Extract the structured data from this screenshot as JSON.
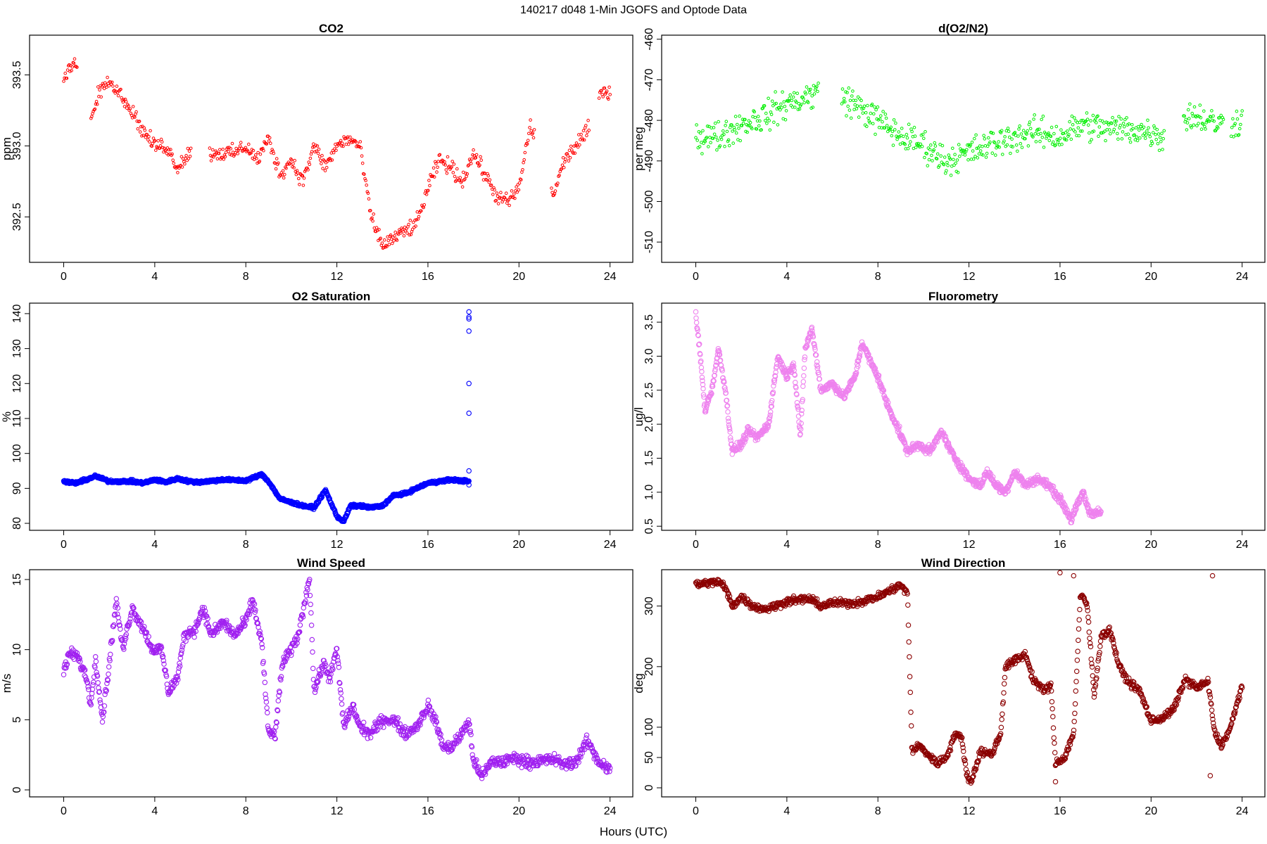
{
  "page": {
    "title": "140217   d048   1-Min  JGOFS and Optode Data",
    "xlabel": "Hours (UTC)"
  },
  "chart_data": [
    {
      "id": "co2",
      "type": "scatter",
      "title": "CO2",
      "ylabel": "ppm",
      "color": "#ff0000",
      "marker": "small-circle",
      "xlim": [
        -1.5,
        25
      ],
      "ylim": [
        392.18,
        393.78
      ],
      "xticks": [
        0,
        4,
        8,
        12,
        16,
        20,
        24
      ],
      "yticks": [
        392.5,
        393.0,
        393.5
      ],
      "ytick_labels": [
        "392.5",
        "393.0",
        "393.5"
      ],
      "trend": [
        [
          0,
          393.45
        ],
        [
          0.3,
          393.55
        ],
        [
          0.5,
          393.6
        ],
        [
          1.2,
          393.2
        ],
        [
          1.6,
          393.4
        ],
        [
          2,
          393.45
        ],
        [
          2.5,
          393.35
        ],
        [
          3,
          393.25
        ],
        [
          3.5,
          393.1
        ],
        [
          4,
          393.0
        ],
        [
          4.5,
          393.0
        ],
        [
          5,
          392.85
        ],
        [
          5.5,
          392.95
        ],
        [
          6.5,
          392.95
        ],
        [
          7.5,
          392.95
        ],
        [
          8,
          393.0
        ],
        [
          8.5,
          392.9
        ],
        [
          9,
          393.05
        ],
        [
          9.5,
          392.8
        ],
        [
          10,
          392.9
        ],
        [
          10.5,
          392.75
        ],
        [
          11,
          393.0
        ],
        [
          11.5,
          392.85
        ],
        [
          12,
          393.0
        ],
        [
          12.5,
          393.05
        ],
        [
          13,
          393.0
        ],
        [
          13.5,
          392.5
        ],
        [
          14,
          392.3
        ],
        [
          14.5,
          392.35
        ],
        [
          15,
          392.4
        ],
        [
          15.5,
          392.45
        ],
        [
          16,
          392.7
        ],
        [
          16.5,
          392.9
        ],
        [
          17,
          392.85
        ],
        [
          17.5,
          392.75
        ],
        [
          18,
          392.95
        ],
        [
          18.5,
          392.8
        ],
        [
          19,
          392.65
        ],
        [
          19.5,
          392.6
        ],
        [
          20,
          392.7
        ],
        [
          20.5,
          393.15
        ],
        [
          21.5,
          392.65
        ],
        [
          22,
          392.9
        ],
        [
          22.5,
          393.0
        ],
        [
          23,
          393.1
        ],
        [
          23.5,
          393.35
        ],
        [
          24,
          393.4
        ]
      ],
      "gaps": [
        [
          0.6,
          1.2
        ],
        [
          5.6,
          6.4
        ],
        [
          20.7,
          21.4
        ],
        [
          23.1,
          23.5
        ]
      ],
      "noise": 0.08
    },
    {
      "id": "o2n2",
      "type": "scatter",
      "title": "d(O2/N2)",
      "ylabel": "per meg",
      "color": "#00ee00",
      "marker": "small-circle",
      "xlim": [
        -1.5,
        25
      ],
      "ylim": [
        -515,
        -459
      ],
      "xticks": [
        0,
        4,
        8,
        12,
        16,
        20,
        24
      ],
      "yticks": [
        -510,
        -500,
        -490,
        -480,
        -470,
        -460
      ],
      "ytick_labels": [
        "-510",
        "-500",
        "-490",
        "-480",
        "-470",
        "-460"
      ],
      "trend": [
        [
          0,
          -484
        ],
        [
          1,
          -484
        ],
        [
          2,
          -481
        ],
        [
          3,
          -479
        ],
        [
          4,
          -476
        ],
        [
          5,
          -474
        ],
        [
          5.4,
          -473
        ],
        [
          6.4,
          -474
        ],
        [
          7,
          -476
        ],
        [
          8,
          -480
        ],
        [
          9,
          -484
        ],
        [
          10,
          -486
        ],
        [
          10.5,
          -488
        ],
        [
          11,
          -490
        ],
        [
          12,
          -488
        ],
        [
          13,
          -486
        ],
        [
          14,
          -484
        ],
        [
          15,
          -483
        ],
        [
          16,
          -484
        ],
        [
          17,
          -481
        ],
        [
          18,
          -482
        ],
        [
          19,
          -482
        ],
        [
          20,
          -483
        ],
        [
          20.5,
          -484
        ],
        [
          21.5,
          -479
        ],
        [
          22,
          -479
        ],
        [
          23,
          -481
        ],
        [
          24,
          -480
        ]
      ],
      "gaps": [
        [
          5.4,
          6.4
        ],
        [
          20.6,
          21.4
        ],
        [
          23.2,
          23.5
        ]
      ],
      "noise": 5.5
    },
    {
      "id": "o2sat",
      "type": "scatter",
      "title": "O2 Saturation",
      "ylabel": "%",
      "color": "#0000ff",
      "marker": "circle",
      "xlim": [
        -1.5,
        25
      ],
      "ylim": [
        78,
        143
      ],
      "xticks": [
        0,
        4,
        8,
        12,
        16,
        20,
        24
      ],
      "yticks": [
        80,
        90,
        100,
        110,
        120,
        130,
        140
      ],
      "ytick_labels": [
        "80",
        "90",
        "100",
        "110",
        "120",
        "130",
        "140"
      ],
      "trend": [
        [
          0,
          92
        ],
        [
          0.5,
          91.5
        ],
        [
          1,
          92.5
        ],
        [
          1.4,
          93.5
        ],
        [
          2,
          92
        ],
        [
          3,
          92
        ],
        [
          3.5,
          91.5
        ],
        [
          4,
          92.5
        ],
        [
          4.5,
          91.8
        ],
        [
          5,
          92.8
        ],
        [
          5.5,
          92
        ],
        [
          6,
          91.8
        ],
        [
          7,
          92.5
        ],
        [
          8,
          92.2
        ],
        [
          8.7,
          94
        ],
        [
          9,
          92
        ],
        [
          9.5,
          87
        ],
        [
          10,
          86
        ],
        [
          10.5,
          85
        ],
        [
          11,
          84.5
        ],
        [
          11.5,
          89.5
        ],
        [
          12,
          82
        ],
        [
          12.3,
          80.5
        ],
        [
          12.6,
          85
        ],
        [
          13,
          85
        ],
        [
          13.5,
          84.5
        ],
        [
          14,
          85
        ],
        [
          14.5,
          88
        ],
        [
          15,
          88.5
        ],
        [
          15.5,
          90
        ],
        [
          16,
          91.5
        ],
        [
          17,
          92.5
        ],
        [
          17.8,
          92
        ]
      ],
      "gaps": [],
      "noise": 0.6,
      "outliers": [
        [
          17.8,
          140.5
        ],
        [
          17.8,
          139
        ],
        [
          17.8,
          138.5
        ],
        [
          17.8,
          135
        ],
        [
          17.8,
          120
        ],
        [
          17.8,
          111.5
        ],
        [
          17.8,
          95
        ],
        [
          17.8,
          91
        ]
      ]
    },
    {
      "id": "fluor",
      "type": "scatter",
      "title": "Fluorometry",
      "ylabel": "ug/l",
      "color": "#ee82ee",
      "marker": "circle",
      "xlim": [
        -1.5,
        25
      ],
      "ylim": [
        0.44,
        3.78
      ],
      "xticks": [
        0,
        4,
        8,
        12,
        16,
        20,
        24
      ],
      "yticks": [
        0.5,
        1.0,
        1.5,
        2.0,
        2.5,
        3.0,
        3.5
      ],
      "ytick_labels": [
        "0.5",
        "1.0",
        "1.5",
        "2.0",
        "2.5",
        "3.0",
        "3.5"
      ],
      "trend": [
        [
          0,
          3.6
        ],
        [
          0.2,
          3.0
        ],
        [
          0.4,
          2.2
        ],
        [
          0.7,
          2.5
        ],
        [
          1,
          3.1
        ],
        [
          1.3,
          2.5
        ],
        [
          1.6,
          1.6
        ],
        [
          2,
          1.7
        ],
        [
          2.3,
          1.9
        ],
        [
          2.7,
          1.8
        ],
        [
          3.2,
          2.0
        ],
        [
          3.6,
          3.0
        ],
        [
          4,
          2.7
        ],
        [
          4.3,
          2.9
        ],
        [
          4.6,
          1.8
        ],
        [
          4.8,
          3.1
        ],
        [
          5.1,
          3.4
        ],
        [
          5.5,
          2.5
        ],
        [
          6,
          2.6
        ],
        [
          6.5,
          2.4
        ],
        [
          7,
          2.7
        ],
        [
          7.3,
          3.2
        ],
        [
          7.7,
          2.9
        ],
        [
          8,
          2.7
        ],
        [
          8.4,
          2.3
        ],
        [
          8.8,
          2.0
        ],
        [
          9.3,
          1.6
        ],
        [
          9.8,
          1.7
        ],
        [
          10.3,
          1.6
        ],
        [
          10.8,
          1.9
        ],
        [
          11.2,
          1.6
        ],
        [
          11.6,
          1.4
        ],
        [
          12,
          1.2
        ],
        [
          12.5,
          1.1
        ],
        [
          12.8,
          1.3
        ],
        [
          13.2,
          1.1
        ],
        [
          13.6,
          1.0
        ],
        [
          14,
          1.3
        ],
        [
          14.5,
          1.1
        ],
        [
          15,
          1.2
        ],
        [
          15.5,
          1.1
        ],
        [
          16,
          0.9
        ],
        [
          16.5,
          0.6
        ],
        [
          17,
          1.0
        ],
        [
          17.3,
          0.7
        ],
        [
          17.8,
          0.7
        ]
      ],
      "gaps": [],
      "noise": 0.09
    },
    {
      "id": "wspd",
      "type": "scatter",
      "title": "Wind Speed",
      "ylabel": "m/s",
      "color": "#a020f0",
      "marker": "circle",
      "xlim": [
        -1.5,
        25
      ],
      "ylim": [
        -0.5,
        15.7
      ],
      "xticks": [
        0,
        4,
        8,
        12,
        16,
        20,
        24
      ],
      "yticks": [
        0,
        5,
        10,
        15
      ],
      "ytick_labels": [
        "0",
        "5",
        "10",
        "15"
      ],
      "trend": [
        [
          0,
          8.5
        ],
        [
          0.3,
          9.8
        ],
        [
          0.6,
          9.5
        ],
        [
          1,
          8
        ],
        [
          1.2,
          6
        ],
        [
          1.4,
          9.5
        ],
        [
          1.7,
          5
        ],
        [
          2,
          9
        ],
        [
          2.3,
          13.5
        ],
        [
          2.6,
          10
        ],
        [
          3,
          13
        ],
        [
          3.5,
          11.5
        ],
        [
          3.9,
          10
        ],
        [
          4.3,
          10
        ],
        [
          4.6,
          7
        ],
        [
          5,
          8
        ],
        [
          5.3,
          11
        ],
        [
          5.8,
          11.5
        ],
        [
          6.1,
          13
        ],
        [
          6.5,
          11
        ],
        [
          7,
          12
        ],
        [
          7.5,
          11
        ],
        [
          8,
          12
        ],
        [
          8.3,
          13.5
        ],
        [
          8.7,
          10.5
        ],
        [
          9,
          4
        ],
        [
          9.3,
          4
        ],
        [
          9.6,
          9
        ],
        [
          10,
          10
        ],
        [
          10.3,
          11
        ],
        [
          10.6,
          13.5
        ],
        [
          10.8,
          15.2
        ],
        [
          11,
          7
        ],
        [
          11.4,
          9
        ],
        [
          11.7,
          8
        ],
        [
          12,
          10
        ],
        [
          12.3,
          4.5
        ],
        [
          12.7,
          6
        ],
        [
          13,
          4.5
        ],
        [
          13.5,
          4
        ],
        [
          14,
          5
        ],
        [
          14.5,
          5
        ],
        [
          15,
          4
        ],
        [
          15.5,
          4.5
        ],
        [
          16,
          6
        ],
        [
          16.3,
          5
        ],
        [
          16.7,
          3
        ],
        [
          17,
          3
        ],
        [
          17.5,
          4
        ],
        [
          17.8,
          5
        ],
        [
          18,
          2
        ],
        [
          18.4,
          1
        ],
        [
          18.8,
          2
        ],
        [
          19.3,
          2
        ],
        [
          19.8,
          2.3
        ],
        [
          20.3,
          2
        ],
        [
          20.8,
          2
        ],
        [
          21.5,
          2.2
        ],
        [
          22,
          1.8
        ],
        [
          22.5,
          2
        ],
        [
          23,
          3.5
        ],
        [
          23.5,
          2
        ],
        [
          24,
          1.5
        ]
      ],
      "gaps": [],
      "noise": 0.6
    },
    {
      "id": "wdir",
      "type": "scatter",
      "title": "Wind Direction",
      "ylabel": "deg",
      "color": "#8b0000",
      "marker": "circle",
      "xlim": [
        -1.5,
        25
      ],
      "ylim": [
        -15,
        360
      ],
      "xticks": [
        0,
        4,
        8,
        12,
        16,
        20,
        24
      ],
      "yticks": [
        0,
        50,
        100,
        200,
        300
      ],
      "ytick_labels": [
        "0",
        "50",
        "100",
        "200",
        "300"
      ],
      "trend": [
        [
          0,
          335
        ],
        [
          0.5,
          338
        ],
        [
          1,
          340
        ],
        [
          1.3,
          330
        ],
        [
          1.6,
          300
        ],
        [
          2,
          315
        ],
        [
          2.5,
          300
        ],
        [
          3,
          295
        ],
        [
          3.5,
          300
        ],
        [
          4,
          308
        ],
        [
          4.5,
          310
        ],
        [
          5,
          312
        ],
        [
          5.5,
          300
        ],
        [
          6,
          305
        ],
        [
          7,
          305
        ],
        [
          7.5,
          310
        ],
        [
          8,
          315
        ],
        [
          8.5,
          325
        ],
        [
          9,
          335
        ],
        [
          9.3,
          320
        ],
        [
          9.5,
          60
        ],
        [
          9.8,
          70
        ],
        [
          10.2,
          55
        ],
        [
          10.6,
          40
        ],
        [
          11,
          50
        ],
        [
          11.4,
          90
        ],
        [
          11.7,
          80
        ],
        [
          11.9,
          20
        ],
        [
          12.1,
          10
        ],
        [
          12.5,
          60
        ],
        [
          13,
          55
        ],
        [
          13.4,
          90
        ],
        [
          13.6,
          200
        ],
        [
          14,
          210
        ],
        [
          14.5,
          220
        ],
        [
          14.8,
          180
        ],
        [
          15.3,
          160
        ],
        [
          15.6,
          170
        ],
        [
          15.8,
          40
        ],
        [
          16.2,
          50
        ],
        [
          16.6,
          90
        ],
        [
          16.9,
          320
        ],
        [
          17.2,
          300
        ],
        [
          17.5,
          150
        ],
        [
          17.8,
          250
        ],
        [
          18.2,
          260
        ],
        [
          18.6,
          200
        ],
        [
          19,
          175
        ],
        [
          19.5,
          160
        ],
        [
          20,
          110
        ],
        [
          20.5,
          115
        ],
        [
          21,
          130
        ],
        [
          21.5,
          180
        ],
        [
          22,
          165
        ],
        [
          22.5,
          175
        ],
        [
          22.8,
          90
        ],
        [
          23.1,
          70
        ],
        [
          23.5,
          100
        ],
        [
          24,
          170
        ]
      ],
      "gaps": [],
      "noise": 9,
      "outliers": [
        [
          16,
          355
        ],
        [
          16.6,
          350
        ],
        [
          22.7,
          350
        ],
        [
          22.6,
          20
        ],
        [
          15.8,
          10
        ]
      ]
    }
  ]
}
